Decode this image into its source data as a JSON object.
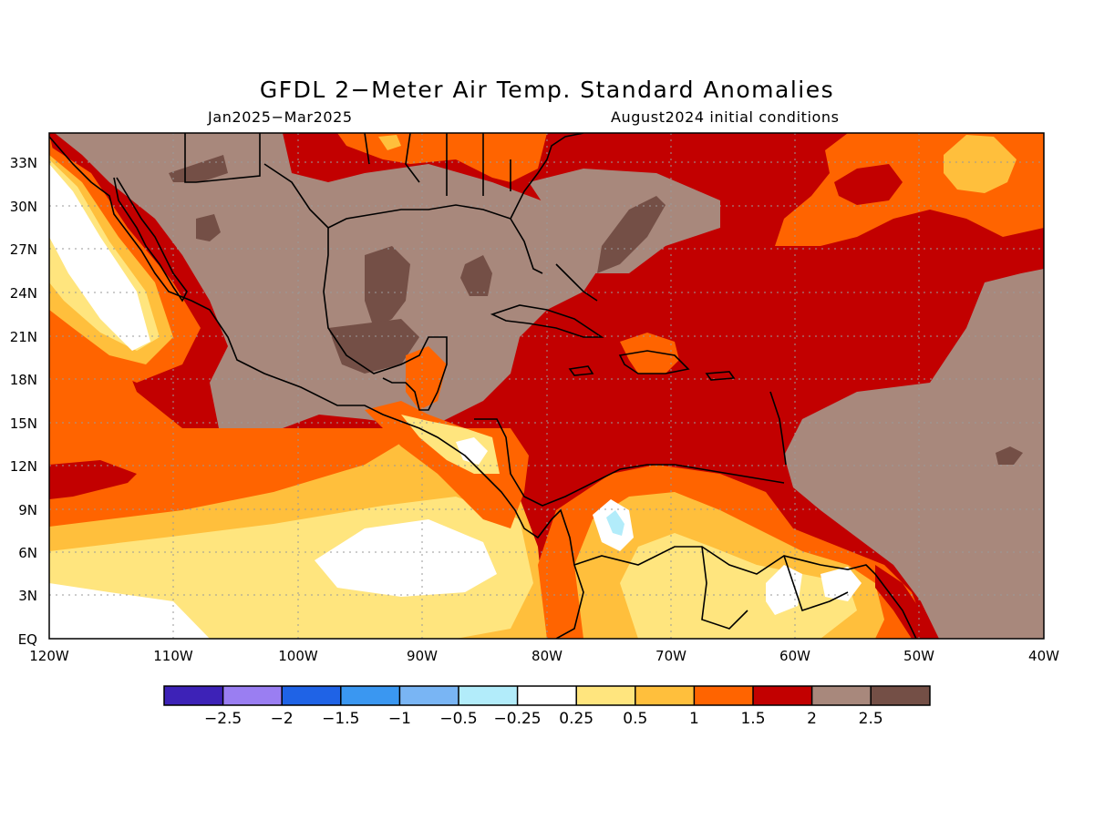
{
  "title": "GFDL 2−Meter Air Temp. Standard Anomalies",
  "subtitle_left": "Jan2025−Mar2025",
  "subtitle_right": "August2024 initial conditions",
  "map": {
    "lat_labels": [
      "EQ",
      "3N",
      "6N",
      "9N",
      "12N",
      "15N",
      "18N",
      "21N",
      "24N",
      "27N",
      "30N",
      "33N"
    ],
    "lon_labels": [
      "120W",
      "110W",
      "100W",
      "90W",
      "80W",
      "70W",
      "60W",
      "50W",
      "40W"
    ],
    "regions": [
      {
        "name": "north-america-interior-anomaly",
        "category": "2 to 2.5"
      },
      {
        "name": "gulf-of-mexico-anomaly",
        "category": "2 to 2.5"
      },
      {
        "name": "caribbean-sea-anomaly",
        "category": "1.5 to 2"
      },
      {
        "name": "eastern-pacific-anomaly",
        "category": "0.25 to 0.5"
      },
      {
        "name": "tropical-atlantic-anomaly",
        "category": "2 to 2.5"
      }
    ]
  },
  "legend": {
    "colors": [
      "#3d22b7",
      "#9a7ef2",
      "#1f63e6",
      "#3a97f1",
      "#79b5f4",
      "#b2ecfa",
      "#ffffff",
      "#ffe57e",
      "#ffbf3c",
      "#ff6400",
      "#c20000",
      "#a8887c",
      "#744f46"
    ],
    "labels": [
      "−2.5",
      "−2",
      "−1.5",
      "−1",
      "−0.5",
      "−0.25",
      "0.25",
      "0.5",
      "1",
      "1.5",
      "2",
      "2.5"
    ]
  }
}
